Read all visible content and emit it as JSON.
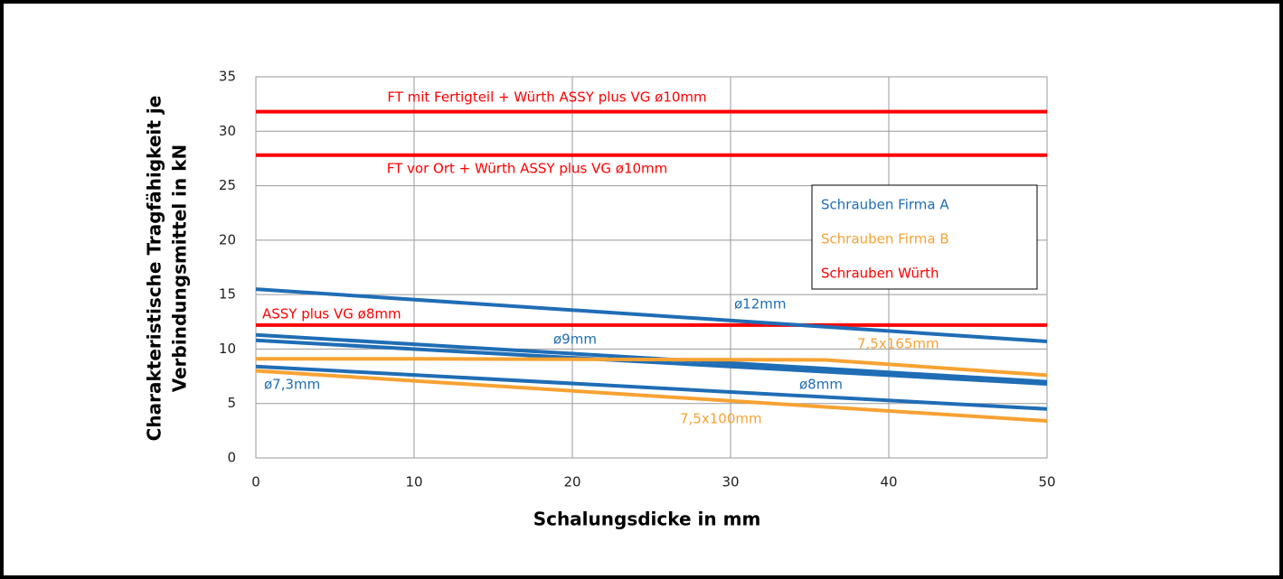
{
  "chart_data": {
    "type": "line",
    "xlabel": "Schalungsdicke in mm",
    "ylabel_lines": [
      "Charakteristische Tragfähigkeit je",
      "Verbindungsmittel in kN"
    ],
    "xlim": [
      0,
      50
    ],
    "xticks": [
      0,
      10,
      20,
      30,
      40,
      50
    ],
    "ylim": [
      0,
      35
    ],
    "yticks": [
      0,
      5,
      10,
      15,
      20,
      25,
      30,
      35
    ],
    "grid": true,
    "legend": [
      {
        "name": "Schrauben Firma A",
        "color": "#1f6db5"
      },
      {
        "name": "Schrauben Firma B",
        "color": "#f7a233"
      },
      {
        "name": "Schrauben Würth",
        "color": "#ff0000"
      }
    ],
    "legend_position": "upper right",
    "series": [
      {
        "name": "FT mit Fertigteil + Würth ASSY plus VG  ø10mm",
        "color": "#ff0000",
        "x": [
          0,
          50
        ],
        "values": [
          31.8,
          31.8
        ]
      },
      {
        "name": "FT vor Ort + Würth ASSY plus VG ø10mm",
        "color": "#ff0000",
        "x": [
          0,
          50
        ],
        "values": [
          27.8,
          27.8
        ]
      },
      {
        "name": "ASSY plus VG ø8mm",
        "color": "#ff0000",
        "x": [
          0,
          50
        ],
        "values": [
          12.2,
          12.2
        ]
      },
      {
        "name": "ø12mm",
        "color": "#1f6db5",
        "x": [
          0,
          50
        ],
        "values": [
          15.5,
          10.7
        ]
      },
      {
        "name": "ø9mm",
        "color": "#1f6db5",
        "x": [
          0,
          50
        ],
        "values": [
          11.3,
          7.0
        ]
      },
      {
        "name": "ø8mm",
        "color": "#1f6db5",
        "x": [
          0,
          50
        ],
        "values": [
          10.8,
          6.8
        ]
      },
      {
        "name": "ø7,3mm",
        "color": "#1f6db5",
        "x": [
          0,
          50
        ],
        "values": [
          8.4,
          4.5
        ]
      },
      {
        "name": "7,5x165mm",
        "color": "#f7a233",
        "x": [
          0,
          10,
          36,
          50
        ],
        "values": [
          9.1,
          9.1,
          9.0,
          7.6
        ]
      },
      {
        "name": "7,5x100mm",
        "color": "#f7a233",
        "x": [
          0,
          50
        ],
        "values": [
          8.0,
          3.4
        ]
      }
    ]
  }
}
